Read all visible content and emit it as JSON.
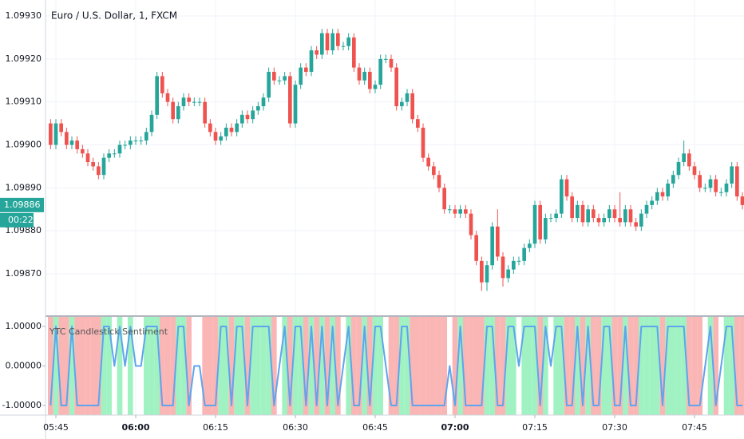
{
  "chart_data": {
    "type": "candlestick",
    "title": "Euro / U.S. Dollar, 1, FXCM",
    "up_color": "#26a69a",
    "down_color": "#ef5350",
    "grid": true,
    "xlim": [
      -0.95,
      130.3
    ],
    "xticks": [
      {
        "value": 1,
        "label": "05:45"
      },
      {
        "value": 16,
        "label": "06:00"
      },
      {
        "value": 31,
        "label": "06:15"
      },
      {
        "value": 46,
        "label": "06:30"
      },
      {
        "value": 61,
        "label": "06:45"
      },
      {
        "value": 76,
        "label": "07:00"
      },
      {
        "value": 91,
        "label": "07:15"
      },
      {
        "value": 106,
        "label": "07:30"
      },
      {
        "value": 121,
        "label": "07:45"
      }
    ],
    "ylim": [
      1.0986034,
      1.0993372
    ],
    "yticks": [
      {
        "value": 1.0987,
        "label": "1.09870"
      },
      {
        "value": 1.0988,
        "label": "1.09880"
      },
      {
        "value": 1.0989,
        "label": "1.09890"
      },
      {
        "value": 1.099,
        "label": "1.09900"
      },
      {
        "value": 1.0991,
        "label": "1.09910"
      },
      {
        "value": 1.0992,
        "label": "1.09920"
      },
      {
        "value": 1.0993,
        "label": "1.09930"
      }
    ],
    "last_price": {
      "value": 1.09886,
      "label": "1.09886"
    },
    "countdown": "00:22",
    "candles": [
      [
        1.09905,
        1.09906,
        1.09899,
        1.099
      ],
      [
        1.099,
        1.09906,
        1.09899,
        1.09905
      ],
      [
        1.09905,
        1.09906,
        1.09902,
        1.09903
      ],
      [
        1.09903,
        1.09904,
        1.09899,
        1.099
      ],
      [
        1.099,
        1.09902,
        1.09899,
        1.09901
      ],
      [
        1.09901,
        1.09902,
        1.09898,
        1.09899
      ],
      [
        1.09899,
        1.099,
        1.09897,
        1.09898
      ],
      [
        1.09898,
        1.09899,
        1.09895,
        1.09896
      ],
      [
        1.09896,
        1.09897,
        1.09894,
        1.09895
      ],
      [
        1.09895,
        1.09896,
        1.09892,
        1.09893
      ],
      [
        1.09893,
        1.09898,
        1.09892,
        1.09897
      ],
      [
        1.09897,
        1.09899,
        1.09896,
        1.09898
      ],
      [
        1.09898,
        1.09899,
        1.09897,
        1.09898
      ],
      [
        1.09898,
        1.09901,
        1.09897,
        1.099
      ],
      [
        1.099,
        1.09901,
        1.09899,
        1.099
      ],
      [
        1.099,
        1.09902,
        1.09899,
        1.09901
      ],
      [
        1.09901,
        1.09902,
        1.099,
        1.09901
      ],
      [
        1.09901,
        1.09902,
        1.099,
        1.09901
      ],
      [
        1.09901,
        1.09904,
        1.099,
        1.09903
      ],
      [
        1.09903,
        1.09908,
        1.09902,
        1.09907
      ],
      [
        1.09907,
        1.09917,
        1.09906,
        1.09916
      ],
      [
        1.09916,
        1.09917,
        1.09911,
        1.09912
      ],
      [
        1.09912,
        1.09913,
        1.09909,
        1.0991
      ],
      [
        1.0991,
        1.09911,
        1.09905,
        1.09906
      ],
      [
        1.09906,
        1.0991,
        1.09905,
        1.09909
      ],
      [
        1.09909,
        1.09912,
        1.09908,
        1.09911
      ],
      [
        1.09911,
        1.09912,
        1.09909,
        1.0991
      ],
      [
        1.0991,
        1.09911,
        1.09909,
        1.0991
      ],
      [
        1.0991,
        1.09911,
        1.09909,
        1.0991
      ],
      [
        1.0991,
        1.09911,
        1.09904,
        1.09905
      ],
      [
        1.09905,
        1.09906,
        1.09902,
        1.09903
      ],
      [
        1.09903,
        1.09904,
        1.099,
        1.09901
      ],
      [
        1.09901,
        1.09903,
        1.099,
        1.09902
      ],
      [
        1.09902,
        1.09905,
        1.09901,
        1.09904
      ],
      [
        1.09904,
        1.09905,
        1.09902,
        1.09903
      ],
      [
        1.09903,
        1.09906,
        1.09902,
        1.09905
      ],
      [
        1.09905,
        1.09908,
        1.09904,
        1.09907
      ],
      [
        1.09907,
        1.09908,
        1.09905,
        1.09906
      ],
      [
        1.09906,
        1.09909,
        1.09905,
        1.09908
      ],
      [
        1.09908,
        1.0991,
        1.09907,
        1.09909
      ],
      [
        1.09909,
        1.09912,
        1.09908,
        1.09911
      ],
      [
        1.09911,
        1.09918,
        1.0991,
        1.09917
      ],
      [
        1.09917,
        1.09918,
        1.09914,
        1.09915
      ],
      [
        1.09915,
        1.09916,
        1.09914,
        1.09915
      ],
      [
        1.09915,
        1.09917,
        1.09914,
        1.09916
      ],
      [
        1.09916,
        1.09917,
        1.09904,
        1.09905
      ],
      [
        1.09905,
        1.09915,
        1.09904,
        1.09914
      ],
      [
        1.09914,
        1.09919,
        1.09913,
        1.09918
      ],
      [
        1.09918,
        1.09919,
        1.09916,
        1.09917
      ],
      [
        1.09917,
        1.09923,
        1.09916,
        1.09922
      ],
      [
        1.09922,
        1.09923,
        1.0992,
        1.09921
      ],
      [
        1.09921,
        1.09927,
        1.0992,
        1.09926
      ],
      [
        1.09926,
        1.09927,
        1.09921,
        1.09922
      ],
      [
        1.09922,
        1.09927,
        1.09921,
        1.09926
      ],
      [
        1.09926,
        1.09927,
        1.09922,
        1.09923
      ],
      [
        1.09923,
        1.09924,
        1.09922,
        1.09923
      ],
      [
        1.09923,
        1.09926,
        1.09922,
        1.09925
      ],
      [
        1.09925,
        1.09926,
        1.09917,
        1.09918
      ],
      [
        1.09918,
        1.09919,
        1.09914,
        1.09915
      ],
      [
        1.09915,
        1.09918,
        1.09914,
        1.09917
      ],
      [
        1.09917,
        1.09918,
        1.09912,
        1.09913
      ],
      [
        1.09913,
        1.09915,
        1.09912,
        1.09914
      ],
      [
        1.09914,
        1.09921,
        1.09913,
        1.0992
      ],
      [
        1.0992,
        1.09921,
        1.09919,
        1.0992
      ],
      [
        1.0992,
        1.09921,
        1.09917,
        1.09918
      ],
      [
        1.09918,
        1.09919,
        1.09908,
        1.09909
      ],
      [
        1.09909,
        1.09911,
        1.09908,
        1.0991
      ],
      [
        1.0991,
        1.09913,
        1.09909,
        1.09912
      ],
      [
        1.09912,
        1.09913,
        1.09905,
        1.09906
      ],
      [
        1.09906,
        1.09907,
        1.09903,
        1.09904
      ],
      [
        1.09904,
        1.09905,
        1.09896,
        1.09897
      ],
      [
        1.09897,
        1.09898,
        1.09894,
        1.09895
      ],
      [
        1.09895,
        1.09896,
        1.09892,
        1.09893
      ],
      [
        1.09893,
        1.09894,
        1.09889,
        1.0989
      ],
      [
        1.0989,
        1.09891,
        1.09884,
        1.09885
      ],
      [
        1.09885,
        1.09886,
        1.09884,
        1.09885
      ],
      [
        1.09885,
        1.09886,
        1.09883,
        1.09884
      ],
      [
        1.09884,
        1.09886,
        1.09883,
        1.09885
      ],
      [
        1.09885,
        1.09886,
        1.09883,
        1.09884
      ],
      [
        1.09884,
        1.09885,
        1.09878,
        1.09879
      ],
      [
        1.09879,
        1.0988,
        1.09872,
        1.09873
      ],
      [
        1.09873,
        1.09874,
        1.09866,
        1.09868
      ],
      [
        1.09868,
        1.09873,
        1.09866,
        1.09872
      ],
      [
        1.09872,
        1.09882,
        1.09871,
        1.09881
      ],
      [
        1.09881,
        1.09885,
        1.09873,
        1.09874
      ],
      [
        1.09874,
        1.09875,
        1.09867,
        1.09869
      ],
      [
        1.09869,
        1.09872,
        1.09868,
        1.09871
      ],
      [
        1.09871,
        1.09874,
        1.0987,
        1.09873
      ],
      [
        1.09873,
        1.09874,
        1.09872,
        1.09873
      ],
      [
        1.09873,
        1.09877,
        1.09872,
        1.09876
      ],
      [
        1.09876,
        1.09878,
        1.09875,
        1.09877
      ],
      [
        1.09877,
        1.09887,
        1.09876,
        1.09886
      ],
      [
        1.09886,
        1.09887,
        1.09877,
        1.09878
      ],
      [
        1.09878,
        1.09884,
        1.09877,
        1.09883
      ],
      [
        1.09883,
        1.09884,
        1.09882,
        1.09883
      ],
      [
        1.09883,
        1.09885,
        1.09882,
        1.09884
      ],
      [
        1.09884,
        1.09893,
        1.09883,
        1.09892
      ],
      [
        1.09892,
        1.09893,
        1.09887,
        1.09888
      ],
      [
        1.09888,
        1.09889,
        1.09882,
        1.09883
      ],
      [
        1.09883,
        1.09887,
        1.09882,
        1.09886
      ],
      [
        1.09886,
        1.09887,
        1.09881,
        1.09882
      ],
      [
        1.09882,
        1.09886,
        1.09881,
        1.09885
      ],
      [
        1.09885,
        1.09886,
        1.09882,
        1.09883
      ],
      [
        1.09883,
        1.09884,
        1.09881,
        1.09882
      ],
      [
        1.09882,
        1.09884,
        1.09881,
        1.09883
      ],
      [
        1.09883,
        1.09886,
        1.09882,
        1.09885
      ],
      [
        1.09885,
        1.09886,
        1.09882,
        1.09883
      ],
      [
        1.09883,
        1.09889,
        1.09881,
        1.09882
      ],
      [
        1.09882,
        1.09886,
        1.09881,
        1.09885
      ],
      [
        1.09885,
        1.09886,
        1.09881,
        1.09882
      ],
      [
        1.09882,
        1.09883,
        1.0988,
        1.09881
      ],
      [
        1.09881,
        1.09885,
        1.0988,
        1.09884
      ],
      [
        1.09884,
        1.09887,
        1.09883,
        1.09886
      ],
      [
        1.09886,
        1.09888,
        1.09885,
        1.09887
      ],
      [
        1.09887,
        1.0989,
        1.09886,
        1.09889
      ],
      [
        1.09889,
        1.0989,
        1.09887,
        1.09888
      ],
      [
        1.09888,
        1.09892,
        1.09887,
        1.09891
      ],
      [
        1.09891,
        1.09894,
        1.0989,
        1.09893
      ],
      [
        1.09893,
        1.09897,
        1.09892,
        1.09896
      ],
      [
        1.09896,
        1.09901,
        1.09895,
        1.09898
      ],
      [
        1.09898,
        1.09899,
        1.09894,
        1.09895
      ],
      [
        1.09895,
        1.09896,
        1.09892,
        1.09893
      ],
      [
        1.09893,
        1.09894,
        1.09889,
        1.0989
      ],
      [
        1.0989,
        1.09891,
        1.09889,
        1.0989
      ],
      [
        1.0989,
        1.09893,
        1.09889,
        1.09892
      ],
      [
        1.09892,
        1.09893,
        1.09888,
        1.09889
      ],
      [
        1.09889,
        1.0989,
        1.09888,
        1.09889
      ],
      [
        1.09889,
        1.09892,
        1.09888,
        1.09891
      ],
      [
        1.09891,
        1.09896,
        1.0989,
        1.09895
      ],
      [
        1.09895,
        1.09896,
        1.09887,
        1.09888
      ],
      [
        1.09888,
        1.09889,
        1.09885,
        1.09886
      ]
    ],
    "indicator": {
      "type": "line",
      "name": "YTC Candlestick Sentiment",
      "color": "#5ea4ee",
      "up_background": "#8ff0b8",
      "down_background": "#f9a8a8",
      "ylim": [
        -1.2424,
        1.2424
      ],
      "yticks": [
        {
          "value": 1,
          "label": "1.00000"
        },
        {
          "value": 0,
          "label": "0.00000"
        },
        {
          "value": -1,
          "label": "-1.00000"
        }
      ],
      "values": [
        -1,
        1,
        -1,
        -1,
        1,
        -1,
        -1,
        -1,
        -1,
        -1,
        1,
        1,
        0,
        1,
        0,
        1,
        0,
        0,
        1,
        1,
        1,
        -1,
        -1,
        -1,
        1,
        1,
        -1,
        0,
        0,
        -1,
        -1,
        -1,
        1,
        1,
        -1,
        1,
        1,
        -1,
        1,
        1,
        1,
        1,
        -1,
        0,
        1,
        -1,
        1,
        1,
        -1,
        1,
        -1,
        1,
        -1,
        1,
        -1,
        0,
        1,
        -1,
        -1,
        1,
        -1,
        1,
        1,
        0,
        -1,
        -1,
        1,
        1,
        -1,
        -1,
        -1,
        -1,
        -1,
        -1,
        -1,
        0,
        -1,
        1,
        -1,
        -1,
        -1,
        -1,
        1,
        1,
        -1,
        -1,
        1,
        1,
        0,
        1,
        1,
        1,
        -1,
        1,
        0,
        1,
        1,
        -1,
        -1,
        1,
        -1,
        1,
        -1,
        -1,
        1,
        1,
        -1,
        -1,
        1,
        -1,
        -1,
        1,
        1,
        1,
        1,
        -1,
        1,
        1,
        1,
        1,
        -1,
        -1,
        -1,
        0,
        1,
        -1,
        0,
        1,
        1,
        -1,
        -1
      ]
    }
  }
}
